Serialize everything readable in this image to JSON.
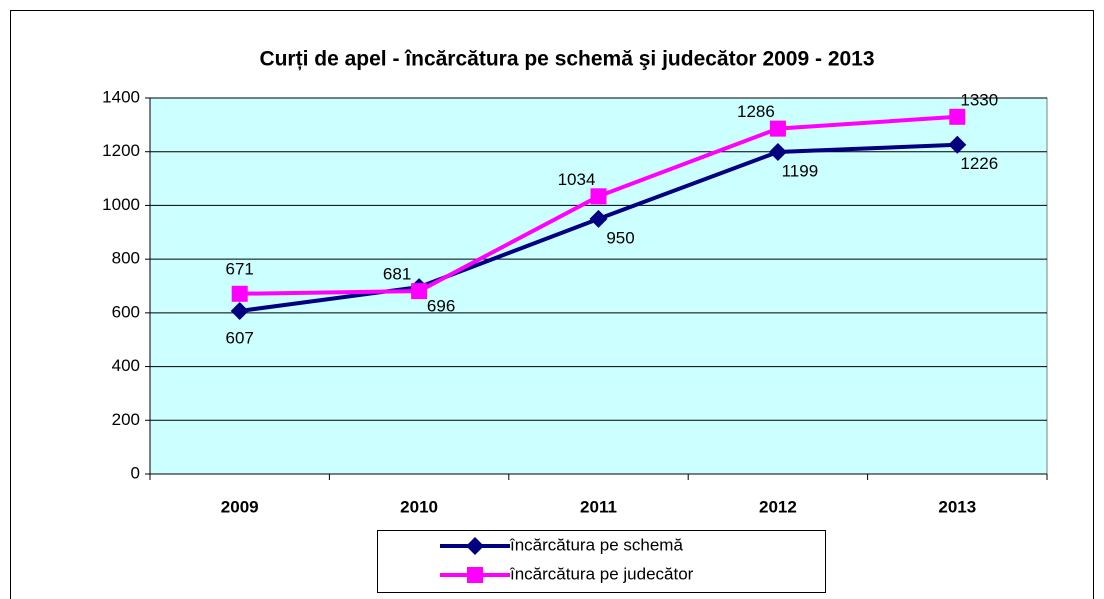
{
  "chart_data": {
    "type": "line",
    "title": "Curți de apel - încărcătura pe schemă şi judecător 2009 - 2013",
    "categories": [
      "2009",
      "2010",
      "2011",
      "2012",
      "2013"
    ],
    "series": [
      {
        "name": "încărcătura pe schemă",
        "color": "#000080",
        "marker": "diamond",
        "values": [
          607,
          696,
          950,
          1199,
          1226
        ]
      },
      {
        "name": "încărcătura pe judecător",
        "color": "#ff00ff",
        "marker": "square",
        "values": [
          671,
          681,
          1034,
          1286,
          1330
        ]
      }
    ],
    "ylim": [
      0,
      1400
    ],
    "yticks": [
      0,
      200,
      400,
      600,
      800,
      1000,
      1200,
      1400
    ],
    "grid": true,
    "legend": "bottom"
  }
}
